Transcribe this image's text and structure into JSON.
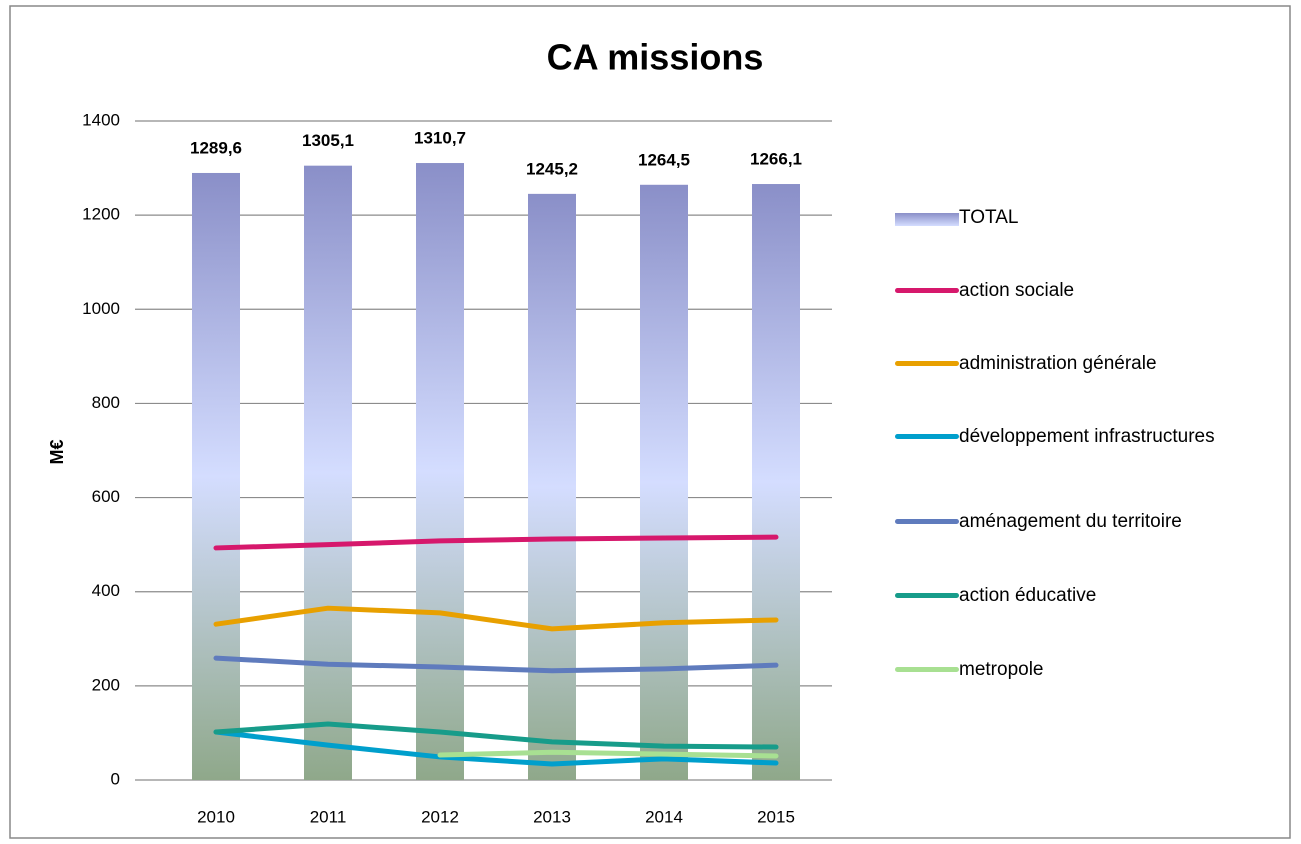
{
  "chart_data": {
    "type": "bar",
    "title": "CA missions",
    "y_label": "M€",
    "categories": [
      "2010",
      "2011",
      "2012",
      "2013",
      "2014",
      "2015"
    ],
    "ylim": [
      0,
      1400
    ],
    "yticks": [
      0,
      200,
      400,
      600,
      800,
      1000,
      1200,
      1400
    ],
    "grid": true,
    "series": [
      {
        "name": "TOTAL",
        "type": "bar",
        "gradient": [
          "#8a8fc8",
          "#d4ddff",
          "#8fa88a"
        ],
        "values": [
          1289.6,
          1305.1,
          1310.7,
          1245.2,
          1264.5,
          1266.1
        ],
        "value_labels": [
          "1289,6",
          "1305,1",
          "1310,7",
          "1245,2",
          "1264,5",
          "1266,1"
        ]
      },
      {
        "name": "action sociale",
        "type": "line",
        "color": "#d6186c",
        "values": [
          493,
          500,
          508,
          512,
          514,
          516
        ]
      },
      {
        "name": "administration générale",
        "type": "line",
        "color": "#e8a000",
        "values": [
          331,
          365,
          355,
          321,
          334,
          340
        ]
      },
      {
        "name": "développement infrastructures",
        "type": "line",
        "color": "#009fcc",
        "values": [
          102,
          74,
          49,
          34,
          45,
          36
        ]
      },
      {
        "name": "aménagement du territoire",
        "type": "line",
        "color": "#5f7bbd",
        "values": [
          259,
          246,
          240,
          232,
          236,
          244
        ]
      },
      {
        "name": "action éducative",
        "type": "line",
        "color": "#179c8a",
        "values": [
          102,
          119,
          102,
          81,
          72,
          70
        ]
      },
      {
        "name": "metropole",
        "type": "line",
        "color": "#a8e092",
        "values": [
          null,
          null,
          53,
          59,
          55,
          51
        ]
      }
    ]
  }
}
